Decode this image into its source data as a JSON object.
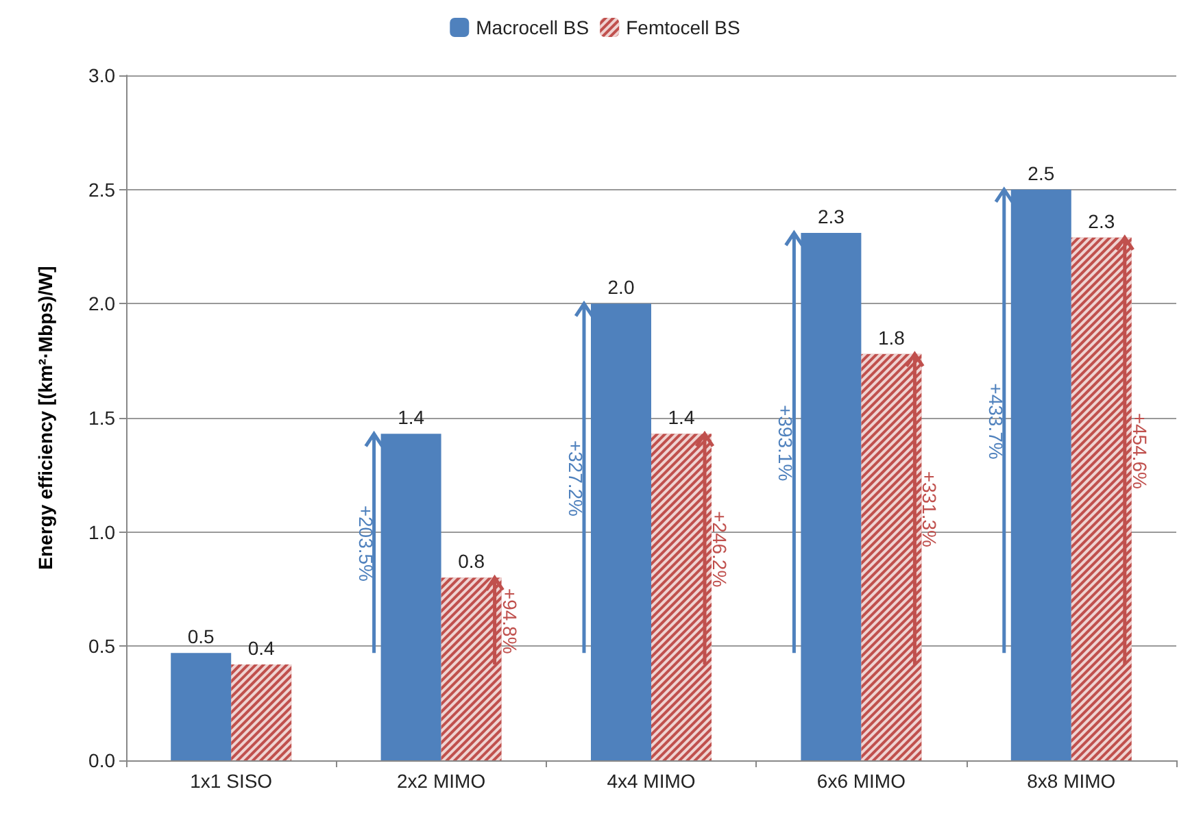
{
  "chart_data": {
    "type": "bar",
    "ylabel": "Energy efficiency [(km²·Mbps)/W]",
    "categories": [
      "1x1 SISO",
      "2x2 MIMO",
      "4x4 MIMO",
      "6x6 MIMO",
      "8x8 MIMO"
    ],
    "series": [
      {
        "name": "Macrocell BS",
        "color": "#4f81bd",
        "values": [
          0.47,
          1.43,
          2.0,
          2.31,
          2.5
        ],
        "value_labels": [
          "0.5",
          "1.4",
          "2.0",
          "2.3",
          "2.5"
        ]
      },
      {
        "name": "Femtocell BS",
        "color": "#c0504d",
        "values": [
          0.42,
          0.8,
          1.43,
          1.78,
          2.29
        ],
        "value_labels": [
          "0.4",
          "0.8",
          "1.4",
          "1.8",
          "2.3"
        ]
      }
    ],
    "ylim": [
      0,
      3
    ],
    "yticks": [
      {
        "value": 0,
        "label": "0.0"
      },
      {
        "value": 0.5,
        "label": "0.5"
      },
      {
        "value": 1,
        "label": "1.0"
      },
      {
        "value": 1.5,
        "label": "1.5"
      },
      {
        "value": 2,
        "label": "2.0"
      },
      {
        "value": 2.5,
        "label": "2.5"
      },
      {
        "value": 3,
        "label": "3.0"
      }
    ],
    "grid": "y",
    "legend": "top",
    "annotations": [
      "+203.5%",
      "+94.8%",
      "+327.2%",
      "+246.2%",
      "+393.1%",
      "+331.3%",
      "+433.7%",
      "+454.6%"
    ]
  }
}
